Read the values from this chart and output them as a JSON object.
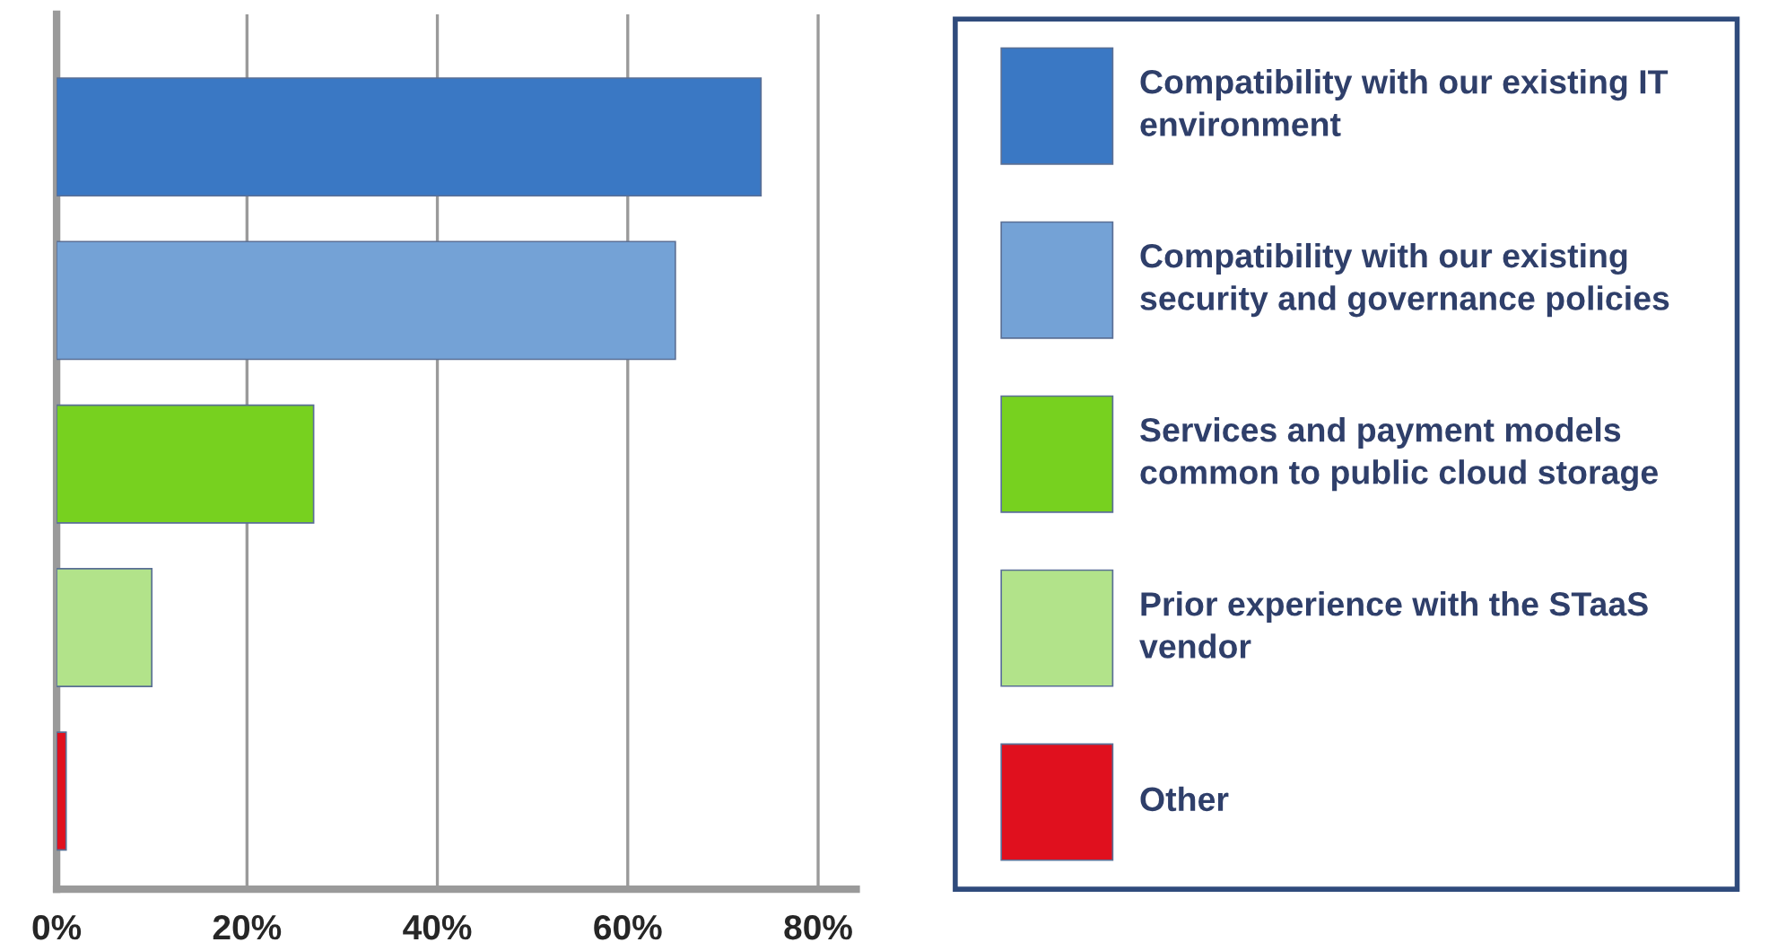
{
  "chart_data": {
    "type": "bar",
    "orientation": "horizontal",
    "categories": [
      null,
      null,
      null,
      null,
      null
    ],
    "series": [
      {
        "name": "Compatibility with our existing IT environment",
        "color": "#3a78c4",
        "values": [
          74,
          null,
          null,
          null,
          null
        ]
      },
      {
        "name": "Compatibility with our existing security and governance policies",
        "color": "#74a2d6",
        "values": [
          null,
          65,
          null,
          null,
          null
        ]
      },
      {
        "name": "Services and payment models common to public cloud storage",
        "color": "#77d11f",
        "values": [
          null,
          null,
          27,
          null,
          null
        ]
      },
      {
        "name": "Prior experience with the STaaS vendor",
        "color": "#b2e38a",
        "values": [
          null,
          null,
          null,
          10,
          null
        ]
      },
      {
        "name": "Other",
        "color": "#e0101e",
        "values": [
          null,
          null,
          null,
          null,
          1
        ]
      }
    ],
    "xlim": [
      0,
      84
    ],
    "xticks": [
      {
        "value": 0,
        "label": "0%"
      },
      {
        "value": 20,
        "label": "20%"
      },
      {
        "value": 40,
        "label": "40%"
      },
      {
        "value": 60,
        "label": "60%"
      },
      {
        "value": 80,
        "label": "80%"
      }
    ],
    "grid": "x",
    "legend": "right"
  }
}
